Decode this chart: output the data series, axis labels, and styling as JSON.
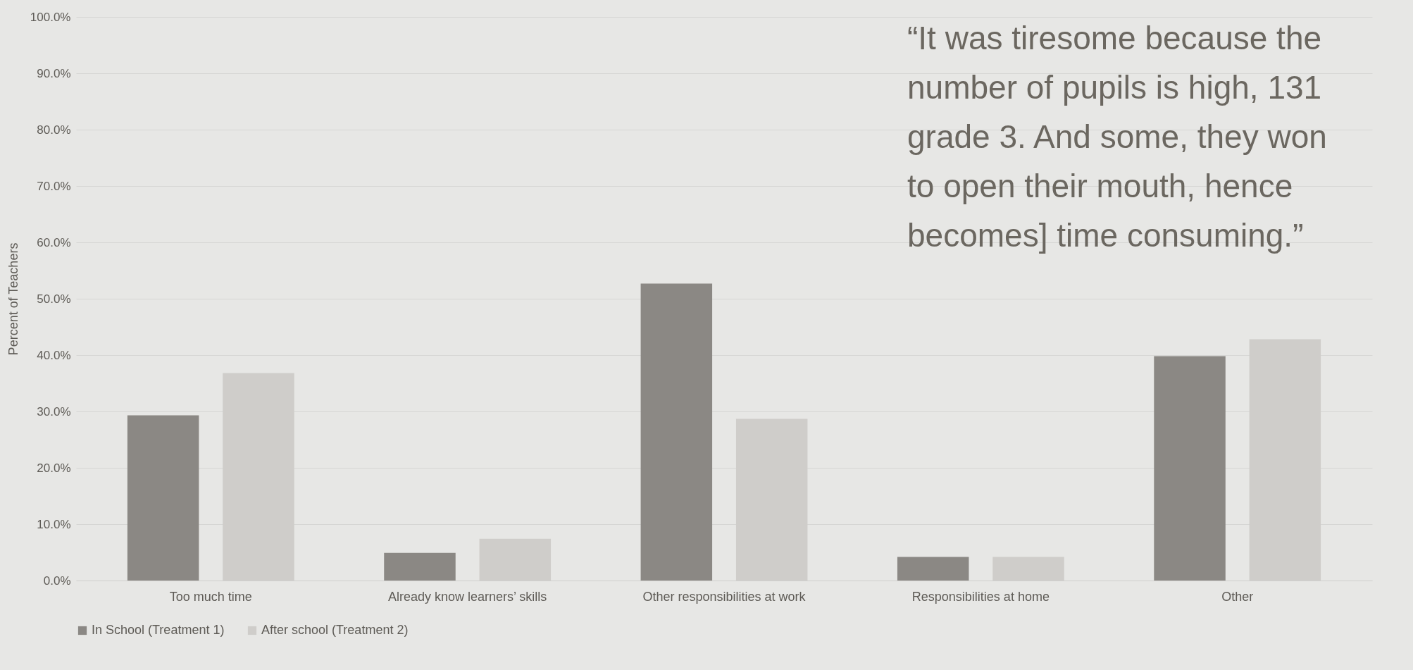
{
  "chart_data": {
    "type": "bar",
    "ylabel": "Percent of Teachers",
    "categories": [
      "Too much time",
      "Already know learners’ skills",
      "Other responsibilities at work",
      "Responsibilities at home",
      "Other"
    ],
    "series": [
      {
        "name": "In School (Treatment 1)",
        "color": "#8b8884",
        "values": [
          29.3,
          4.9,
          52.7,
          4.2,
          39.8
        ]
      },
      {
        "name": "After school (Treatment 2)",
        "color": "#cfcdca",
        "values": [
          36.8,
          7.4,
          28.7,
          4.2,
          42.8
        ]
      }
    ],
    "ylim": [
      0,
      100
    ],
    "yticks": [
      {
        "value": 0,
        "label": "0.0%"
      },
      {
        "value": 10,
        "label": "10.0%"
      },
      {
        "value": 20,
        "label": "20.0%"
      },
      {
        "value": 30,
        "label": "30.0%"
      },
      {
        "value": 40,
        "label": "40.0%"
      },
      {
        "value": 50,
        "label": "50.0%"
      },
      {
        "value": 60,
        "label": "60.0%"
      },
      {
        "value": 70,
        "label": "70.0%"
      },
      {
        "value": 80,
        "label": "80.0%"
      },
      {
        "value": 90,
        "label": "90.0%"
      },
      {
        "value": 100,
        "label": "100.0%"
      }
    ],
    "grid": "y",
    "legend": "bottom",
    "annotations": [
      "“It was tiresome because the\nnumber of pupils is high, 131\ngrade 3. And some, they won\nto open their mouth, hence\nbecomes] time consuming.”"
    ]
  }
}
